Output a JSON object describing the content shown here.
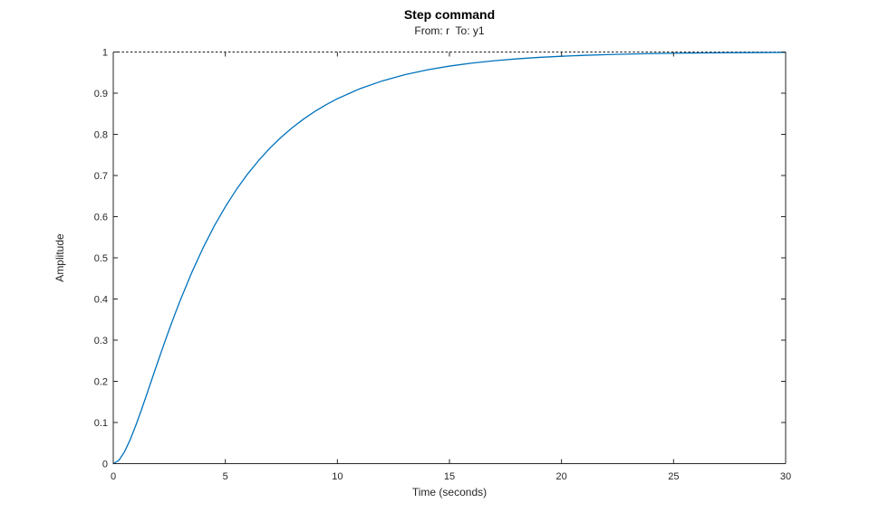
{
  "figure": {
    "title": "Step command",
    "subtitle": "From: r  To: y1",
    "xlabel": "Time (seconds)",
    "ylabel": "Amplitude"
  },
  "colors": {
    "curve": "#0072BD",
    "axis": "#262626",
    "tick_text": "#262626",
    "reference_line": "#1a1a1a",
    "background": "#ffffff"
  },
  "chart_data": {
    "type": "line",
    "title": "Step command",
    "subtitle": "From: r  To: y1",
    "xlabel": "Time (seconds)",
    "ylabel": "Amplitude",
    "xlim": [
      0,
      30
    ],
    "ylim": [
      0,
      1
    ],
    "xticks": [
      0,
      5,
      10,
      15,
      20,
      25,
      30
    ],
    "xtick_labels": [
      "0",
      "5",
      "10",
      "15",
      "20",
      "25",
      "30"
    ],
    "yticks": [
      0,
      0.1,
      0.2,
      0.3,
      0.4,
      0.5,
      0.6,
      0.7,
      0.8,
      0.9,
      1
    ],
    "ytick_labels": [
      "0",
      "0.1",
      "0.2",
      "0.3",
      "0.4",
      "0.5",
      "0.6",
      "0.7",
      "0.8",
      "0.9",
      "1"
    ],
    "grid": false,
    "box": true,
    "legend": null,
    "reference_line": {
      "y": 1.0,
      "style": "dotted",
      "meaning": "steady-state value"
    },
    "series": [
      {
        "name": "step response r to y1",
        "color": "#0072BD",
        "x": [
          0,
          0.25,
          0.5,
          0.75,
          1,
          1.25,
          1.5,
          1.75,
          2,
          2.25,
          2.5,
          2.75,
          3,
          3.5,
          4,
          4.5,
          5,
          5.5,
          6,
          6.5,
          7,
          7.5,
          8,
          8.5,
          9,
          9.5,
          10,
          11,
          12,
          13,
          14,
          15,
          16,
          17,
          18,
          19,
          20,
          21,
          22,
          23,
          24,
          25,
          26,
          27,
          28,
          29,
          30
        ],
        "y": [
          0,
          0.008,
          0.0285,
          0.0576,
          0.092,
          0.1297,
          0.1692,
          0.2093,
          0.2492,
          0.2884,
          0.3264,
          0.3631,
          0.3983,
          0.4641,
          0.5234,
          0.5767,
          0.6241,
          0.6664,
          0.704,
          0.7374,
          0.7671,
          0.7934,
          0.8167,
          0.8375,
          0.8559,
          0.8722,
          0.8866,
          0.9108,
          0.9298,
          0.9448,
          0.9566,
          0.9658,
          0.9731,
          0.9788,
          0.9834,
          0.9869,
          0.9897,
          0.9919,
          0.9936,
          0.995,
          0.9961,
          0.9969,
          0.9976,
          0.9981,
          0.9985,
          0.9988,
          0.9991
        ]
      }
    ]
  }
}
